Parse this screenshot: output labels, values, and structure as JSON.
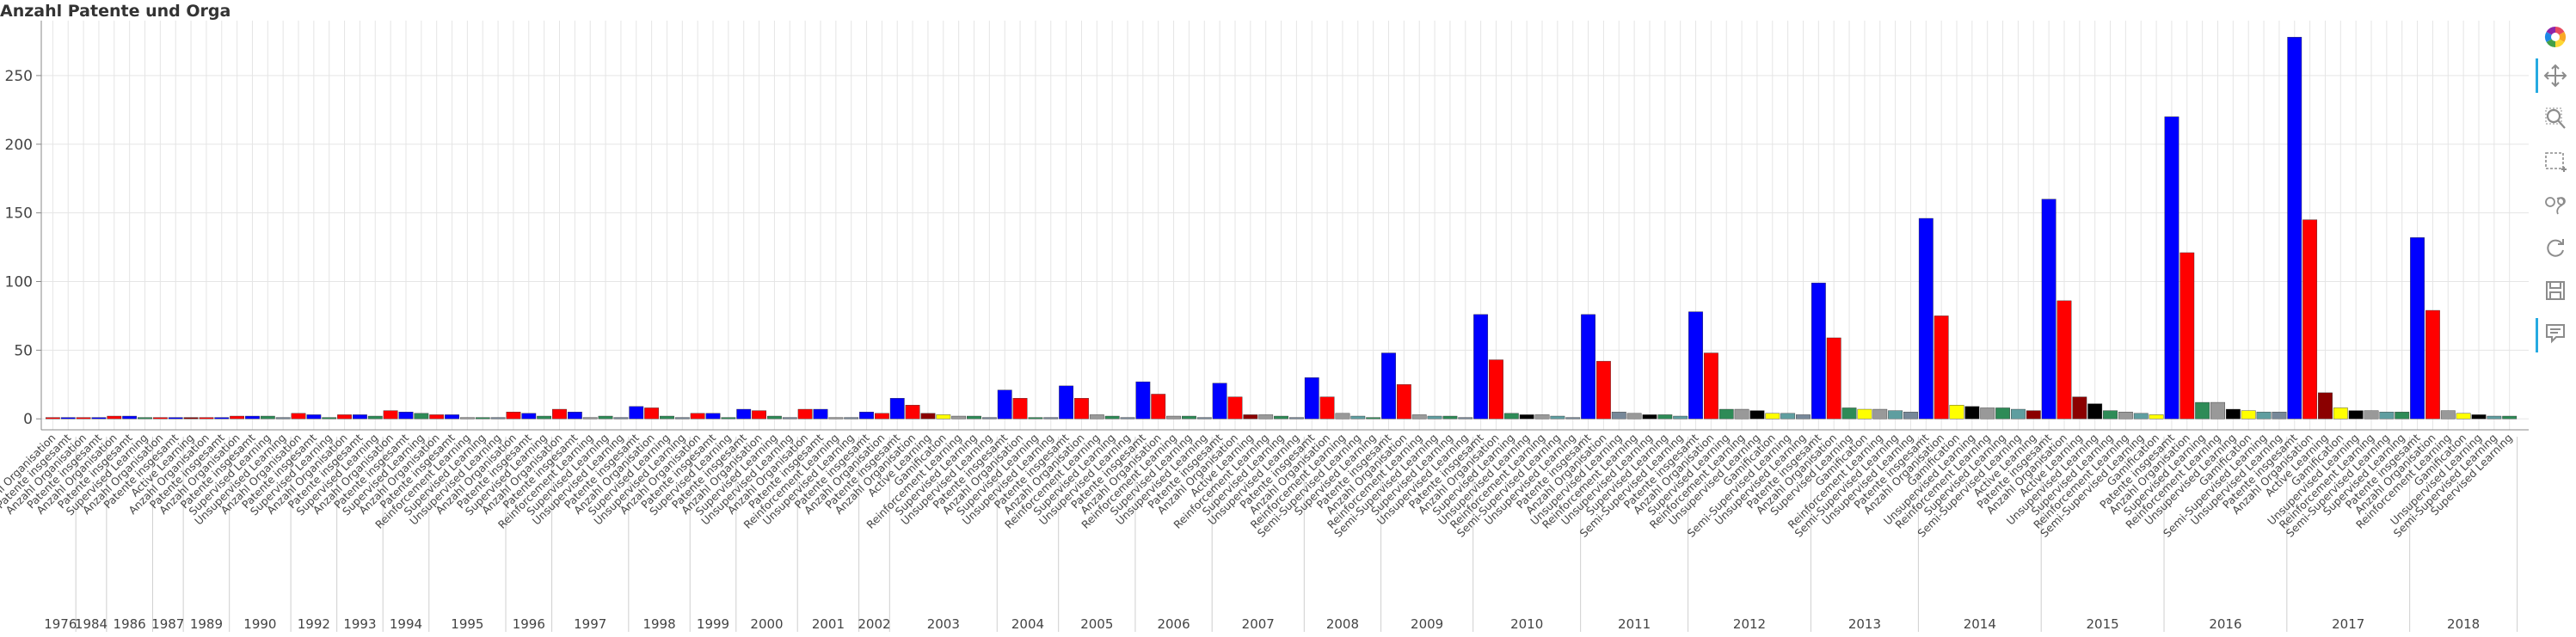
{
  "chart_data": {
    "type": "bar",
    "title": "Anzahl Patente und Orga",
    "ylim": [
      -8,
      290
    ],
    "yticks": [
      0,
      50,
      100,
      150,
      200,
      250
    ],
    "grid": true,
    "colors": {
      "Patente insgesamt": "#0000ff",
      "Anzahl Organisation": "#ff0000",
      "Active Learning": "#8b0000",
      "Reinforcement Learning": "#999999",
      "Semi-Supervised Learning": "#5f9ea0",
      "Supervised Learning": "#2e8b57",
      "Unsupervised Learning": "#778899",
      "Gamification": "#ffff00",
      "Unsupervised Learning 2": "#000000"
    },
    "groups": [
      {
        "year": "1976",
        "bars": [
          [
            "Anzahl Organisation",
            1
          ],
          [
            "Patente insgesamt",
            1
          ]
        ]
      },
      {
        "year": "1984",
        "bars": [
          [
            "Anzahl Organisation",
            1
          ],
          [
            "Patente insgesamt",
            1
          ]
        ]
      },
      {
        "year": "1986",
        "bars": [
          [
            "Anzahl Organisation",
            2
          ],
          [
            "Patente insgesamt",
            2
          ],
          [
            "Supervised Learning",
            1
          ]
        ]
      },
      {
        "year": "1987",
        "bars": [
          [
            "Anzahl Organisation",
            1
          ],
          [
            "Patente insgesamt",
            1
          ]
        ]
      },
      {
        "year": "1989",
        "bars": [
          [
            "Active Learning",
            1
          ],
          [
            "Anzahl Organisation",
            1
          ],
          [
            "Patente insgesamt",
            1
          ]
        ]
      },
      {
        "year": "1990",
        "bars": [
          [
            "Anzahl Organisation",
            2
          ],
          [
            "Patente insgesamt",
            2
          ],
          [
            "Supervised Learning",
            2
          ],
          [
            "Unsupervised Learning",
            1
          ]
        ]
      },
      {
        "year": "1992",
        "bars": [
          [
            "Anzahl Organisation",
            4
          ],
          [
            "Patente insgesamt",
            3
          ],
          [
            "Supervised Learning",
            1
          ]
        ]
      },
      {
        "year": "1993",
        "bars": [
          [
            "Anzahl Organisation",
            3
          ],
          [
            "Patente insgesamt",
            3
          ],
          [
            "Supervised Learning",
            2
          ]
        ]
      },
      {
        "year": "1994",
        "bars": [
          [
            "Anzahl Organisation",
            6
          ],
          [
            "Patente insgesamt",
            5
          ],
          [
            "Supervised Learning",
            4
          ]
        ]
      },
      {
        "year": "1995",
        "bars": [
          [
            "Anzahl Organisation",
            3
          ],
          [
            "Patente insgesamt",
            3
          ],
          [
            "Reinforcement Learning",
            1
          ],
          [
            "Supervised Learning",
            1
          ],
          [
            "Unsupervised Learning",
            1
          ]
        ]
      },
      {
        "year": "1996",
        "bars": [
          [
            "Anzahl Organisation",
            5
          ],
          [
            "Patente insgesamt",
            4
          ],
          [
            "Supervised Learning",
            2
          ]
        ]
      },
      {
        "year": "1997",
        "bars": [
          [
            "Anzahl Organisation",
            7
          ],
          [
            "Patente insgesamt",
            5
          ],
          [
            "Reinforcement Learning",
            1
          ],
          [
            "Supervised Learning",
            2
          ],
          [
            "Unsupervised Learning",
            1
          ]
        ]
      },
      {
        "year": "1998",
        "bars": [
          [
            "Patente insgesamt",
            9
          ],
          [
            "Anzahl Organisation",
            8
          ],
          [
            "Supervised Learning",
            2
          ],
          [
            "Unsupervised Learning",
            1
          ]
        ]
      },
      {
        "year": "1999",
        "bars": [
          [
            "Anzahl Organisation",
            4
          ],
          [
            "Patente insgesamt",
            4
          ],
          [
            "Supervised Learning",
            1
          ]
        ]
      },
      {
        "year": "2000",
        "bars": [
          [
            "Patente insgesamt",
            7
          ],
          [
            "Anzahl Organisation",
            6
          ],
          [
            "Supervised Learning",
            2
          ],
          [
            "Unsupervised Learning",
            1
          ]
        ]
      },
      {
        "year": "2001",
        "bars": [
          [
            "Anzahl Organisation",
            7
          ],
          [
            "Patente insgesamt",
            7
          ],
          [
            "Reinforcement Learning",
            1
          ],
          [
            "Unsupervised Learning",
            1
          ]
        ]
      },
      {
        "year": "2002",
        "bars": [
          [
            "Patente insgesamt",
            5
          ],
          [
            "Anzahl Organisation",
            4
          ]
        ]
      },
      {
        "year": "2003",
        "bars": [
          [
            "Patente insgesamt",
            15
          ],
          [
            "Anzahl Organisation",
            10
          ],
          [
            "Active Learning",
            4
          ],
          [
            "Gamification",
            3
          ],
          [
            "Reinforcement Learning",
            2
          ],
          [
            "Supervised Learning",
            2
          ],
          [
            "Unsupervised Learning",
            1
          ]
        ]
      },
      {
        "year": "2004",
        "bars": [
          [
            "Patente insgesamt",
            21
          ],
          [
            "Anzahl Organisation",
            15
          ],
          [
            "Supervised Learning",
            1
          ],
          [
            "Unsupervised Learning",
            1
          ]
        ]
      },
      {
        "year": "2005",
        "bars": [
          [
            "Patente insgesamt",
            24
          ],
          [
            "Anzahl Organisation",
            15
          ],
          [
            "Reinforcement Learning",
            3
          ],
          [
            "Supervised Learning",
            2
          ],
          [
            "Unsupervised Learning",
            1
          ]
        ]
      },
      {
        "year": "2006",
        "bars": [
          [
            "Patente insgesamt",
            27
          ],
          [
            "Anzahl Organisation",
            18
          ],
          [
            "Reinforcement Learning",
            2
          ],
          [
            "Supervised Learning",
            2
          ],
          [
            "Unsupervised Learning",
            1
          ]
        ]
      },
      {
        "year": "2007",
        "bars": [
          [
            "Patente insgesamt",
            26
          ],
          [
            "Anzahl Organisation",
            16
          ],
          [
            "Active Learning",
            3
          ],
          [
            "Reinforcement Learning",
            3
          ],
          [
            "Supervised Learning",
            2
          ],
          [
            "Unsupervised Learning",
            1
          ]
        ]
      },
      {
        "year": "2008",
        "bars": [
          [
            "Patente insgesamt",
            30
          ],
          [
            "Anzahl Organisation",
            16
          ],
          [
            "Reinforcement Learning",
            4
          ],
          [
            "Semi-Supervised Learning",
            2
          ],
          [
            "Supervised Learning",
            1
          ]
        ]
      },
      {
        "year": "2009",
        "bars": [
          [
            "Patente insgesamt",
            48
          ],
          [
            "Anzahl Organisation",
            25
          ],
          [
            "Reinforcement Learning",
            3
          ],
          [
            "Semi-Supervised Learning",
            2
          ],
          [
            "Supervised Learning",
            2
          ],
          [
            "Unsupervised Learning",
            1
          ]
        ]
      },
      {
        "year": "2010",
        "bars": [
          [
            "Patente insgesamt",
            76
          ],
          [
            "Anzahl Organisation",
            43
          ],
          [
            "Supervised Learning",
            4
          ],
          [
            "Unsupervised Learning 2",
            3
          ],
          [
            "Reinforcement Learning",
            3
          ],
          [
            "Semi-Supervised Learning",
            2
          ],
          [
            "Unsupervised Learning",
            1
          ]
        ]
      },
      {
        "year": "2011",
        "bars": [
          [
            "Patente insgesamt",
            76
          ],
          [
            "Anzahl Organisation",
            42
          ],
          [
            "Unsupervised Learning",
            5
          ],
          [
            "Reinforcement Learning",
            4
          ],
          [
            "Unsupervised Learning 2",
            3
          ],
          [
            "Supervised Learning",
            3
          ],
          [
            "Semi-Supervised Learning",
            2
          ]
        ]
      },
      {
        "year": "2012",
        "bars": [
          [
            "Patente insgesamt",
            78
          ],
          [
            "Anzahl Organisation",
            48
          ],
          [
            "Supervised Learning",
            7
          ],
          [
            "Reinforcement Learning",
            7
          ],
          [
            "Unsupervised Learning 2",
            6
          ],
          [
            "Gamification",
            4
          ],
          [
            "Semi-Supervised Learning",
            4
          ],
          [
            "Unsupervised Learning",
            3
          ]
        ]
      },
      {
        "year": "2013",
        "bars": [
          [
            "Patente insgesamt",
            99
          ],
          [
            "Anzahl Organisation",
            59
          ],
          [
            "Supervised Learning",
            8
          ],
          [
            "Gamification",
            7
          ],
          [
            "Reinforcement Learning",
            7
          ],
          [
            "Semi-Supervised Learning",
            6
          ],
          [
            "Unsupervised Learning",
            5
          ]
        ]
      },
      {
        "year": "2014",
        "bars": [
          [
            "Patente insgesamt",
            146
          ],
          [
            "Anzahl Organisation",
            75
          ],
          [
            "Gamification",
            10
          ],
          [
            "Unsupervised Learning 2",
            9
          ],
          [
            "Reinforcement Learning",
            8
          ],
          [
            "Supervised Learning",
            8
          ],
          [
            "Semi-Supervised Learning",
            7
          ],
          [
            "Active Learning",
            6
          ]
        ]
      },
      {
        "year": "2015",
        "bars": [
          [
            "Patente insgesamt",
            160
          ],
          [
            "Anzahl Organisation",
            86
          ],
          [
            "Active Learning",
            16
          ],
          [
            "Unsupervised Learning 2",
            11
          ],
          [
            "Supervised Learning",
            6
          ],
          [
            "Reinforcement Learning",
            5
          ],
          [
            "Semi-Supervised Learning",
            4
          ],
          [
            "Gamification",
            3
          ]
        ]
      },
      {
        "year": "2016",
        "bars": [
          [
            "Patente insgesamt",
            220
          ],
          [
            "Anzahl Organisation",
            121
          ],
          [
            "Supervised Learning",
            12
          ],
          [
            "Reinforcement Learning",
            12
          ],
          [
            "Unsupervised Learning 2",
            7
          ],
          [
            "Gamification",
            6
          ],
          [
            "Semi-Supervised Learning",
            5
          ],
          [
            "Unsupervised Learning",
            5
          ]
        ]
      },
      {
        "year": "2017",
        "bars": [
          [
            "Patente insgesamt",
            278
          ],
          [
            "Anzahl Organisation",
            145
          ],
          [
            "Active Learning",
            19
          ],
          [
            "Gamification",
            8
          ],
          [
            "Unsupervised Learning 2",
            6
          ],
          [
            "Reinforcement Learning",
            6
          ],
          [
            "Semi-Supervised Learning",
            5
          ],
          [
            "Supervised Learning",
            5
          ]
        ]
      },
      {
        "year": "2018",
        "bars": [
          [
            "Patente insgesamt",
            132
          ],
          [
            "Anzahl Organisation",
            79
          ],
          [
            "Reinforcement Learning",
            6
          ],
          [
            "Gamification",
            4
          ],
          [
            "Unsupervised Learning 2",
            3
          ],
          [
            "Semi-Supervised Learning",
            2
          ],
          [
            "Supervised Learning",
            2
          ]
        ]
      }
    ]
  },
  "toolbar": [
    {
      "name": "bokeh-logo-icon"
    },
    {
      "name": "pan-icon"
    },
    {
      "name": "wheel-zoom-icon"
    },
    {
      "name": "box-zoom-icon"
    },
    {
      "name": "lasso-select-icon"
    },
    {
      "name": "reset-icon"
    },
    {
      "name": "save-icon"
    },
    {
      "name": "hover-icon"
    }
  ]
}
